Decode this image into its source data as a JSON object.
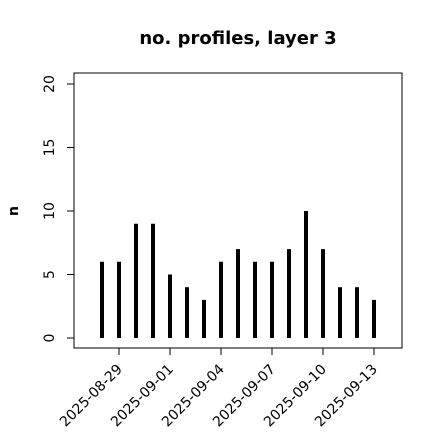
{
  "chart_data": {
    "type": "bar",
    "title": "no. profiles, layer 3",
    "ylabel": "n",
    "x": [
      "2025-08-28",
      "2025-08-29",
      "2025-08-30",
      "2025-08-31",
      "2025-09-01",
      "2025-09-02",
      "2025-09-03",
      "2025-09-04",
      "2025-09-05",
      "2025-09-06",
      "2025-09-07",
      "2025-09-08",
      "2025-09-09",
      "2025-09-10",
      "2025-09-11",
      "2025-09-12",
      "2025-09-13"
    ],
    "values": [
      6,
      6,
      9,
      9,
      5,
      4,
      3,
      6,
      7,
      6,
      6,
      7,
      10,
      7,
      4,
      4,
      3
    ],
    "color": "#000000",
    "xticks": [
      "2025-08-29",
      "2025-09-01",
      "2025-09-04",
      "2025-09-07",
      "2025-09-10",
      "2025-09-13"
    ],
    "xtick_colors": [
      "#000000",
      "#000000",
      "#228b22",
      "#000000",
      "#000000",
      "#000000"
    ],
    "ylim": [
      0,
      20
    ],
    "yticks": [
      0,
      5,
      10,
      15,
      20
    ],
    "grid": false
  }
}
